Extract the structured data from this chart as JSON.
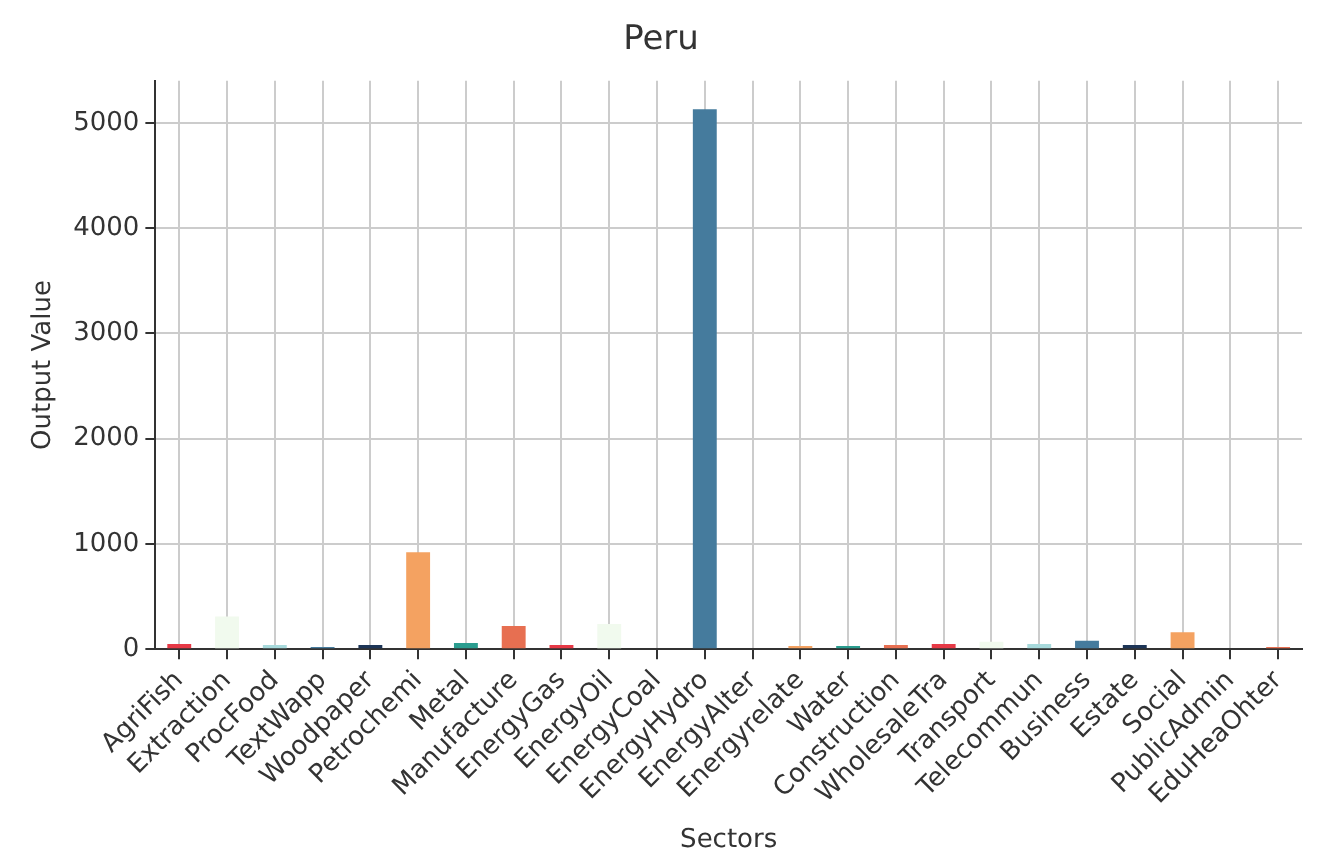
{
  "chart_data": {
    "type": "bar",
    "title": "Peru",
    "xlabel": "Sectors",
    "ylabel": "Output Value",
    "categories": [
      "AgriFish",
      "Extraction",
      "ProcFood",
      "TextWapp",
      "Woodpaper",
      "Petrochemi",
      "Metal",
      "Manufacture",
      "EnergyGas",
      "EnergyOil",
      "EnergyCoal",
      "EnergyHydro",
      "EnergyAlter",
      "Energyrelate",
      "Water",
      "Construction",
      "WholesaleTra",
      "Transport",
      "Telecommun",
      "Business",
      "Estate",
      "Social",
      "PublicAdmin",
      "EduHeaOhter"
    ],
    "values": [
      50,
      310,
      40,
      20,
      40,
      920,
      60,
      220,
      40,
      240,
      0,
      5130,
      0,
      30,
      30,
      40,
      50,
      70,
      50,
      80,
      40,
      160,
      0,
      20
    ],
    "colors": [
      "#e63946",
      "#f1faee",
      "#a8dadc",
      "#457b9d",
      "#1d3557",
      "#f4a261",
      "#2a9d8f",
      "#e76f51",
      "#e63946",
      "#f1faee",
      "#a8dadc",
      "#457b9d",
      "#1d3557",
      "#f4a261",
      "#2a9d8f",
      "#e76f51",
      "#e63946",
      "#f1faee",
      "#a8dadc",
      "#457b9d",
      "#1d3557",
      "#f4a261",
      "#2a9d8f",
      "#e76f51"
    ],
    "ylim": [
      0,
      5400
    ],
    "yticks": [
      0,
      1000,
      2000,
      3000,
      4000,
      5000
    ],
    "grid": true
  }
}
